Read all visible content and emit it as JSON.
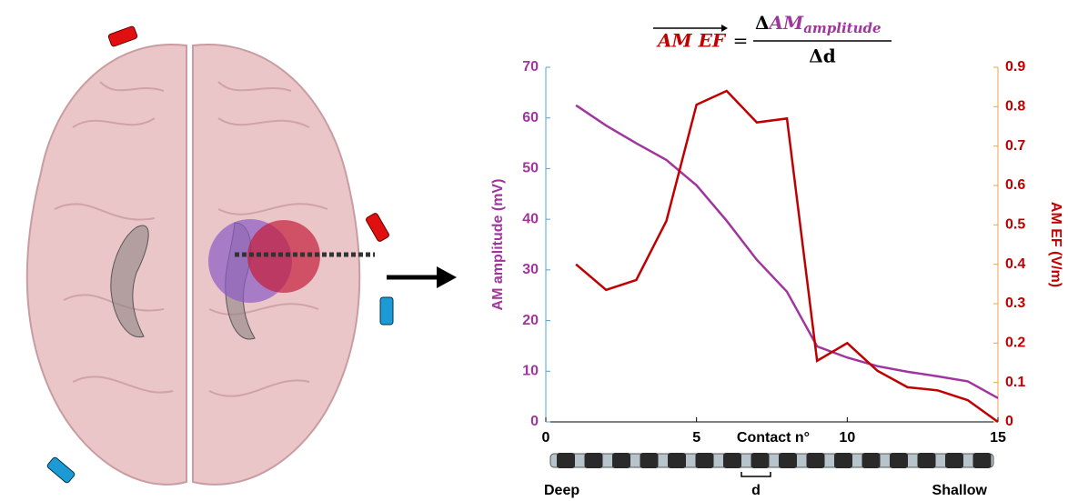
{
  "chart_data": {
    "type": "line",
    "title_lhs": "AM EF",
    "title_equals": "=",
    "title_numerator_delta": "Δ",
    "title_numerator": "AM",
    "title_numerator_sub": "amplitude",
    "title_denominator": "Δd",
    "x_label": "Contact n°",
    "y_label": "AM amplitude (mV)",
    "y2_label": "AM EF (V/m)",
    "annotations": {
      "deep": "Deep",
      "d": "d",
      "shallow": "Shallow"
    },
    "x": [
      1,
      2,
      3,
      4,
      5,
      6,
      7,
      8,
      9,
      10,
      11,
      12,
      13,
      14,
      15
    ],
    "series": [
      {
        "color": "#a0359e",
        "values": [
          62.5,
          58.5,
          55,
          51.7,
          46.7,
          39.7,
          32,
          25.7,
          14.9,
          12.7,
          11,
          9.9,
          9,
          8,
          4.7
        ]
      },
      {
        "color": "#c00000",
        "axis": "y2",
        "values": [
          0.4,
          0.335,
          0.36,
          0.51,
          0.805,
          0.84,
          0.76,
          0.77,
          0.155,
          0.2,
          0.13,
          0.088,
          0.08,
          0.055,
          0
        ]
      }
    ],
    "xlim": [
      0,
      15
    ],
    "xticks": [
      0,
      5,
      10,
      15
    ],
    "ylim": [
      0,
      70
    ],
    "yticks": [
      0,
      10,
      20,
      30,
      40,
      50,
      60,
      70
    ],
    "y2lim": [
      0,
      0.9
    ],
    "y2ticks": [
      0,
      0.1,
      0.2,
      0.3,
      0.4,
      0.5,
      0.6,
      0.7,
      0.8,
      0.9
    ]
  }
}
